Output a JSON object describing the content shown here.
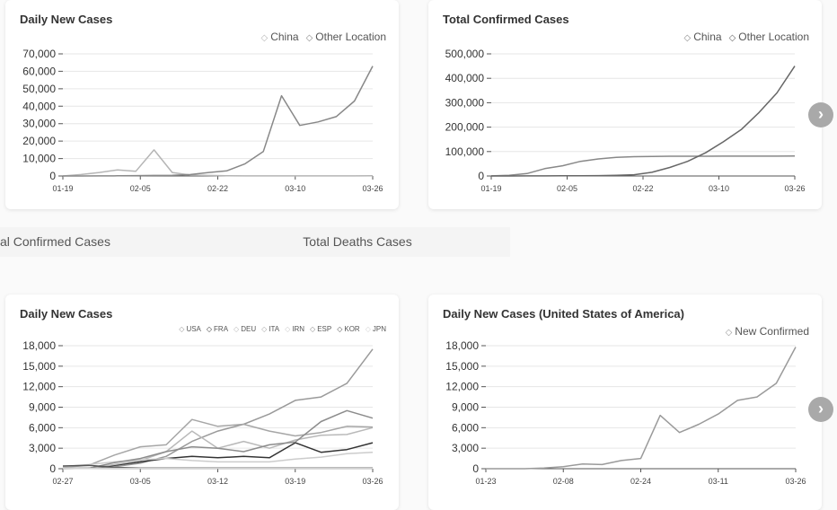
{
  "tabs": [
    {
      "label": "al Confirmed Cases"
    },
    {
      "label": "Total Deaths Cases"
    }
  ],
  "nav": {
    "next_icon": "chevron-right-icon",
    "glyph": "›"
  },
  "chart_data": [
    {
      "type": "line",
      "title": "Daily New Cases",
      "x": [
        "01-19",
        "01-24",
        "01-29",
        "02-05",
        "02-09",
        "02-13",
        "02-17",
        "02-22",
        "02-28",
        "03-04",
        "03-10",
        "03-14",
        "03-16",
        "03-18",
        "03-20",
        "03-22",
        "03-24",
        "03-26"
      ],
      "x_tick_labels": [
        "01-19",
        "02-05",
        "02-22",
        "03-10",
        "03-26"
      ],
      "y_tick_labels": [
        "0",
        "10,000",
        "20,000",
        "30,000",
        "40,000",
        "50,000",
        "60,000",
        "70,000"
      ],
      "ylim": [
        0,
        70000
      ],
      "series": [
        {
          "name": "China",
          "color": "#b5b5b5",
          "values": [
            20,
            800,
            2000,
            3500,
            2700,
            15000,
            2000,
            500,
            300,
            150,
            40,
            30,
            30,
            30,
            60,
            50,
            70,
            90
          ]
        },
        {
          "name": "Other Location",
          "color": "#888888",
          "values": [
            0,
            10,
            30,
            100,
            200,
            300,
            400,
            800,
            2000,
            3000,
            7000,
            14000,
            46000,
            29000,
            31000,
            34000,
            43000,
            63000
          ]
        }
      ],
      "legend": "top-right"
    },
    {
      "type": "line",
      "title": "Total Confirmed Cases",
      "x": [
        "01-19",
        "01-24",
        "01-29",
        "02-05",
        "02-09",
        "02-13",
        "02-17",
        "02-22",
        "02-28",
        "03-04",
        "03-10",
        "03-14",
        "03-16",
        "03-18",
        "03-20",
        "03-22",
        "03-24",
        "03-26"
      ],
      "x_tick_labels": [
        "01-19",
        "02-05",
        "02-22",
        "03-10",
        "03-26"
      ],
      "y_tick_labels": [
        "0",
        "100,000",
        "200,000",
        "300,000",
        "400,000",
        "500,000"
      ],
      "ylim": [
        0,
        500000
      ],
      "series": [
        {
          "name": "China",
          "color": "#888888",
          "values": [
            200,
            3000,
            10000,
            30000,
            42000,
            60000,
            70000,
            76000,
            79000,
            80000,
            80700,
            80900,
            81000,
            81100,
            81200,
            81300,
            81400,
            81600
          ]
        },
        {
          "name": "Other Location",
          "color": "#666666",
          "values": [
            0,
            100,
            200,
            500,
            800,
            1000,
            1500,
            2500,
            5000,
            15000,
            35000,
            60000,
            95000,
            140000,
            190000,
            260000,
            340000,
            450000
          ]
        }
      ],
      "legend": "top-right"
    },
    {
      "type": "line",
      "title": "Daily New Cases",
      "x": [
        "02-27",
        "03-05",
        "03-12",
        "03-16",
        "03-18",
        "03-19",
        "03-20",
        "03-21",
        "03-22",
        "03-23",
        "03-24",
        "03-25",
        "03-26"
      ],
      "x_tick_labels": [
        "02-27",
        "03-05",
        "03-12",
        "03-19",
        "03-26"
      ],
      "y_tick_labels": [
        "0",
        "3,000",
        "6,000",
        "9,000",
        "12,000",
        "15,000",
        "18,000"
      ],
      "ylim": [
        0,
        18000
      ],
      "series": [
        {
          "name": "USA",
          "color": "#9a9a9a",
          "values": [
            10,
            50,
            300,
            800,
            1800,
            4000,
            5500,
            6500,
            8000,
            10000,
            10500,
            12500,
            17500
          ]
        },
        {
          "name": "FRA",
          "color": "#333333",
          "values": [
            20,
            80,
            500,
            1000,
            1500,
            1800,
            1600,
            1800,
            1600,
            3800,
            2400,
            2800,
            3800
          ]
        },
        {
          "name": "DEU",
          "color": "#b9b9b9",
          "values": [
            10,
            50,
            600,
            1200,
            2500,
            5500,
            3000,
            4000,
            3000,
            4200,
            4900,
            5000,
            6000
          ]
        },
        {
          "name": "ITA",
          "color": "#a6a6a6",
          "values": [
            200,
            500,
            2000,
            3200,
            3500,
            7200,
            6200,
            6500,
            5500,
            4800,
            5300,
            6200,
            6100
          ]
        },
        {
          "name": "IRN",
          "color": "#cccccc",
          "values": [
            300,
            600,
            1000,
            1300,
            1500,
            1200,
            1000,
            1000,
            1000,
            1400,
            1700,
            2200,
            2400
          ]
        },
        {
          "name": "ESP",
          "color": "#8c8c8c",
          "values": [
            10,
            50,
            900,
            1500,
            2500,
            3200,
            3000,
            2500,
            3500,
            3900,
            6900,
            8500,
            7400
          ]
        },
        {
          "name": "KOR",
          "color": "#555555",
          "values": [
            400,
            500,
            200,
            100,
            100,
            100,
            100,
            100,
            100,
            100,
            100,
            100,
            100
          ]
        },
        {
          "name": "JPN",
          "color": "#d2d2d2",
          "values": [
            20,
            30,
            50,
            50,
            50,
            50,
            50,
            50,
            50,
            50,
            50,
            50,
            50
          ]
        }
      ],
      "legend": "top-right"
    },
    {
      "type": "line",
      "title": "Daily New Cases (United States of America)",
      "x": [
        "01-23",
        "02-08",
        "02-24",
        "03-08",
        "03-11",
        "03-14",
        "03-16",
        "03-17",
        "03-18",
        "03-19",
        "03-20",
        "03-21",
        "03-22",
        "03-23",
        "03-24",
        "03-25",
        "03-26"
      ],
      "x_tick_labels": [
        "01-23",
        "02-08",
        "02-24",
        "03-11",
        "03-26"
      ],
      "y_tick_labels": [
        "0",
        "3,000",
        "6,000",
        "9,000",
        "12,000",
        "15,000",
        "18,000"
      ],
      "ylim": [
        0,
        18000
      ],
      "series": [
        {
          "name": "New Confirmed",
          "color": "#9a9a9a",
          "values": [
            0,
            0,
            5,
            100,
            300,
            700,
            600,
            1200,
            1500,
            7800,
            5300,
            6500,
            8000,
            10000,
            10500,
            12500,
            17800
          ]
        }
      ],
      "legend": "top-right"
    }
  ]
}
